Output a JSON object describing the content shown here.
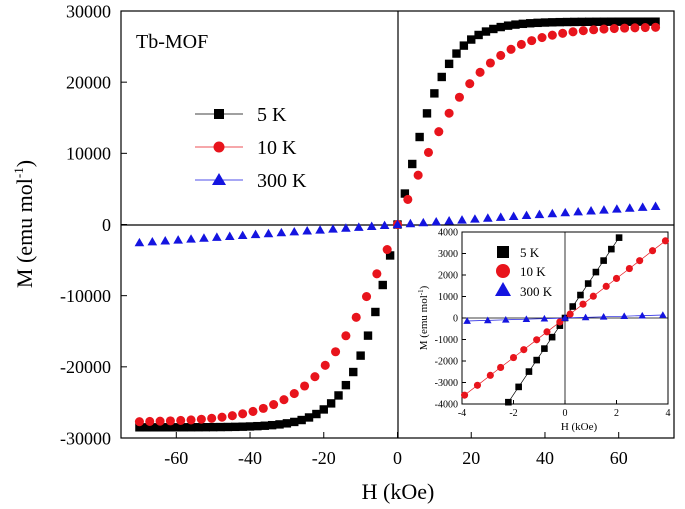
{
  "colors": {
    "s5K": "#000000",
    "s10K": "#e8141c",
    "s300K": "#1414e0",
    "axis": "#000000",
    "background": "#ffffff"
  },
  "chart_data": [
    {
      "id": "main",
      "type": "scatter",
      "title": "",
      "annotation": "Tb-MOF",
      "xlabel": "H (kOe)",
      "ylabel": "M (emu mol⁻¹)",
      "ylabel_main": "M (emu mol",
      "ylabel_sup": "-1",
      "ylabel_close": ")",
      "xlim": [
        -75,
        75
      ],
      "ylim": [
        -30000,
        30000
      ],
      "xticks": [
        -60,
        -40,
        -20,
        0,
        20,
        40,
        60
      ],
      "yticks": [
        -30000,
        -20000,
        -10000,
        0,
        10000,
        20000,
        30000
      ],
      "grid": false,
      "legend_position": "upper-left",
      "model": "M = Ms * tanh(H / H0)",
      "series": [
        {
          "name": "5 K",
          "marker": "square",
          "color_key": "s5K",
          "Ms": 28500,
          "H0": 13,
          "x_start": -70,
          "x_end": 70,
          "x_step": 2
        },
        {
          "name": "10 K",
          "marker": "circle",
          "color_key": "s10K",
          "Ms": 27800,
          "H0": 22,
          "x_start": -70,
          "x_end": 70,
          "x_step": 2.8
        },
        {
          "name": "300 K",
          "marker": "triangle",
          "color_key": "s300K",
          "slope": 36.5,
          "x_start": -70,
          "x_end": 70,
          "x_step": 3.5
        }
      ]
    },
    {
      "id": "inset",
      "type": "scatter",
      "xlabel": "H (kOe)",
      "ylabel": "M (emu mol⁻¹)",
      "ylabel_main": "M (emu mol",
      "ylabel_sup": "-1",
      "ylabel_close": ")",
      "xlim": [
        -4,
        4
      ],
      "ylim": [
        -4000,
        4000
      ],
      "xticks": [
        -4,
        -2,
        0,
        2,
        4
      ],
      "yticks": [
        -4000,
        -3000,
        -2000,
        -1000,
        0,
        1000,
        2000,
        3000,
        4000
      ],
      "grid": false,
      "legend_position": "upper-left",
      "series": [
        {
          "name": "5 K",
          "marker": "square",
          "color_key": "s5K",
          "slope": 1780,
          "x": [
            -2.2,
            -1.8,
            -1.4,
            -1.1,
            -0.8,
            -0.5,
            -0.2,
            0.0,
            0.3,
            0.6,
            0.9,
            1.2,
            1.5,
            1.8,
            2.1
          ]
        },
        {
          "name": "10 K",
          "marker": "circle",
          "color_key": "s10K",
          "slope": 920,
          "x": [
            -3.9,
            -3.4,
            -2.9,
            -2.5,
            -2.0,
            -1.6,
            -1.1,
            -0.7,
            -0.2,
            0.2,
            0.7,
            1.1,
            1.6,
            2.0,
            2.5,
            2.9,
            3.4,
            3.9
          ]
        },
        {
          "name": "300 K",
          "marker": "triangle",
          "color_key": "s300K",
          "slope": 36.5,
          "x": [
            -3.8,
            -3.0,
            -2.3,
            -1.5,
            -0.8,
            0.0,
            0.8,
            1.5,
            2.3,
            3.0,
            3.8
          ]
        }
      ]
    }
  ]
}
